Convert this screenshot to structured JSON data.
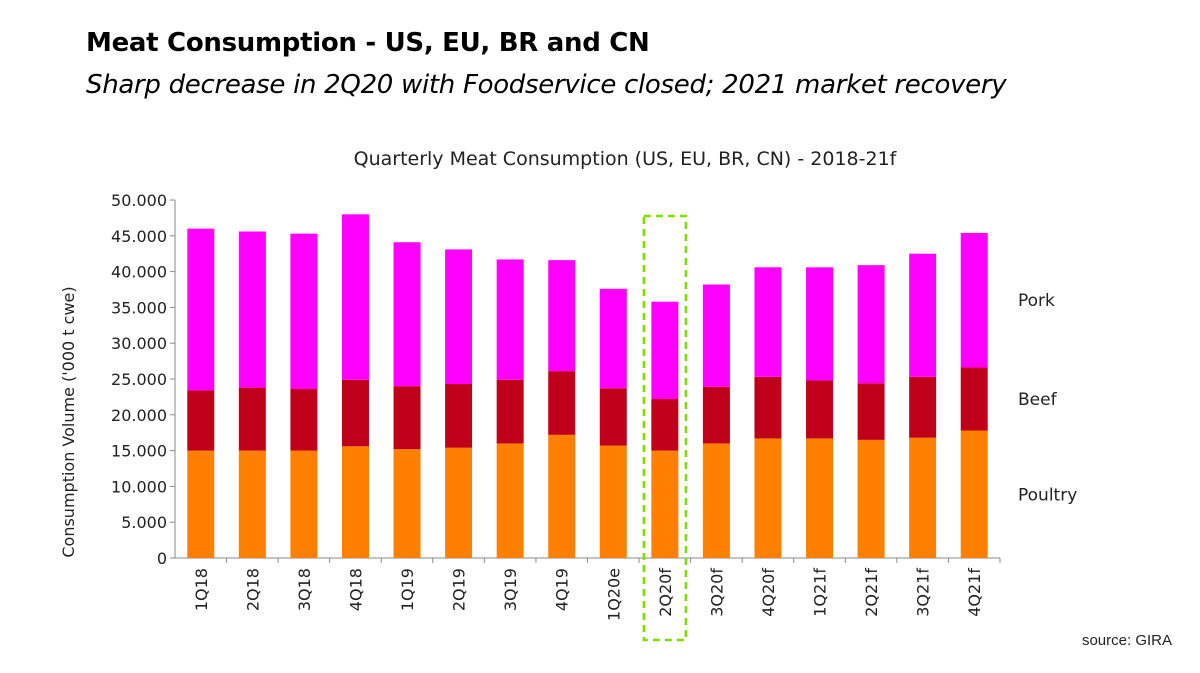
{
  "header": {
    "title": "Meat Consumption - US, EU, BR and CN",
    "subtitle": "Sharp decrease in 2Q20 with Foodservice closed; 2021 market recovery"
  },
  "source": "source: GIRA",
  "colors": {
    "Poultry": "#ff8000",
    "Beef": "#c0001a",
    "Pork": "#ff00ff",
    "highlight": "#7ee000"
  },
  "chart_data": {
    "type": "bar",
    "stacked": true,
    "title": "Quarterly Meat Consumption (US, EU, BR, CN) - 2018-21f",
    "ylabel": "Consumption Volume ('000 t cwe)",
    "xlabel": "",
    "ylim": [
      0,
      50000
    ],
    "yticks": [
      "0",
      "5.000",
      "10.000",
      "15.000",
      "20.000",
      "25.000",
      "30.000",
      "35.000",
      "40.000",
      "45.000",
      "50.000"
    ],
    "categories": [
      "1Q18",
      "2Q18",
      "3Q18",
      "4Q18",
      "1Q19",
      "2Q19",
      "3Q19",
      "4Q19",
      "1Q20e",
      "2Q20f",
      "3Q20f",
      "4Q20f",
      "1Q21f",
      "2Q21f",
      "3Q21f",
      "4Q21f"
    ],
    "series": [
      {
        "name": "Poultry",
        "values": [
          15000,
          15000,
          15000,
          15600,
          15200,
          15400,
          16000,
          17200,
          15700,
          15000,
          16000,
          16700,
          16700,
          16500,
          16800,
          17800
        ]
      },
      {
        "name": "Beef",
        "values": [
          8400,
          8800,
          8600,
          9300,
          8800,
          8900,
          8900,
          8900,
          8000,
          7200,
          7900,
          8600,
          8100,
          7900,
          8500,
          8800
        ]
      },
      {
        "name": "Pork",
        "values": [
          22600,
          21800,
          21700,
          23100,
          20100,
          18800,
          16800,
          15500,
          13900,
          13600,
          14300,
          15300,
          15800,
          16500,
          17200,
          18800
        ]
      }
    ],
    "highlight_category": "2Q20f",
    "grid": false,
    "legend": "labels at right of last bar"
  }
}
